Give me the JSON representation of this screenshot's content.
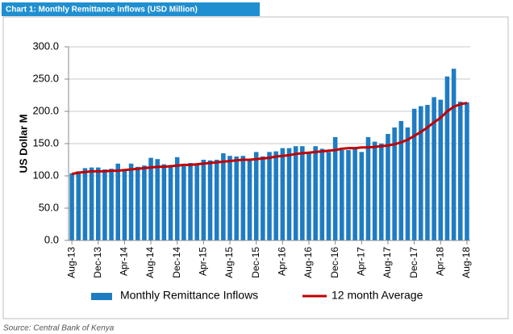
{
  "chart_data": {
    "type": "bar_line",
    "title": "Chart 1: Monthly Remittance Inflows (USD Million)",
    "y_label": "US Dollar M",
    "categories": [
      "Aug-13",
      null,
      null,
      null,
      "Dec-13",
      null,
      null,
      null,
      "Apr-14",
      null,
      null,
      null,
      "Aug-14",
      null,
      null,
      null,
      "Dec-14",
      null,
      null,
      null,
      "Apr-15",
      null,
      null,
      null,
      "Aug-15",
      null,
      null,
      null,
      "Dec-15",
      null,
      null,
      null,
      "Apr-16",
      null,
      null,
      null,
      "Aug-16",
      null,
      null,
      null,
      "Dec-16",
      null,
      null,
      null,
      "Apr-17",
      null,
      null,
      null,
      "Aug-17",
      null,
      null,
      null,
      "Dec-17",
      null,
      null,
      null,
      "Apr-18",
      null,
      null,
      null,
      "Aug-18"
    ],
    "series": [
      {
        "name": "Monthly Remittance Inflows",
        "kind": "bar",
        "color": "#1f7cc2",
        "values": [
          104,
          107,
          112,
          113,
          113,
          110,
          111,
          119,
          110,
          119,
          114,
          116,
          128,
          126,
          118,
          114,
          129,
          115,
          120,
          119,
          125,
          124,
          125,
          135,
          131,
          130,
          131,
          126,
          137,
          130,
          137,
          138,
          143,
          143,
          146,
          146,
          137,
          146,
          142,
          137,
          160,
          140,
          140,
          142,
          137,
          160,
          153,
          150,
          165,
          175,
          185,
          175,
          204,
          208,
          210,
          222,
          218,
          254,
          266,
          215,
          214
        ]
      },
      {
        "name": "12 month Average",
        "kind": "line",
        "color": "#c00000",
        "values": [
          103,
          105,
          106,
          107,
          107,
          107,
          108,
          108,
          109,
          110,
          111,
          112,
          113,
          114,
          114,
          115,
          116,
          117,
          117,
          118,
          119,
          120,
          121,
          122,
          123,
          124,
          125,
          125,
          126,
          127,
          128,
          130,
          131,
          132,
          134,
          135,
          136,
          137,
          138,
          139,
          140,
          142,
          143,
          143,
          144,
          144,
          145,
          146,
          147,
          149,
          152,
          156,
          162,
          168,
          175,
          183,
          190,
          200,
          207,
          211,
          213
        ]
      }
    ],
    "ylim": [
      0,
      300
    ],
    "yticks": [
      {
        "value": 0,
        "label": "0.0"
      },
      {
        "value": 50,
        "label": "50.0"
      },
      {
        "value": 100,
        "label": "100.0"
      },
      {
        "value": 150,
        "label": "150.0"
      },
      {
        "value": 200,
        "label": "200.0"
      },
      {
        "value": 250,
        "label": "250.0"
      },
      {
        "value": 300,
        "label": "300.0"
      }
    ],
    "grid": true
  },
  "source": "Source: Central Bank of Kenya"
}
